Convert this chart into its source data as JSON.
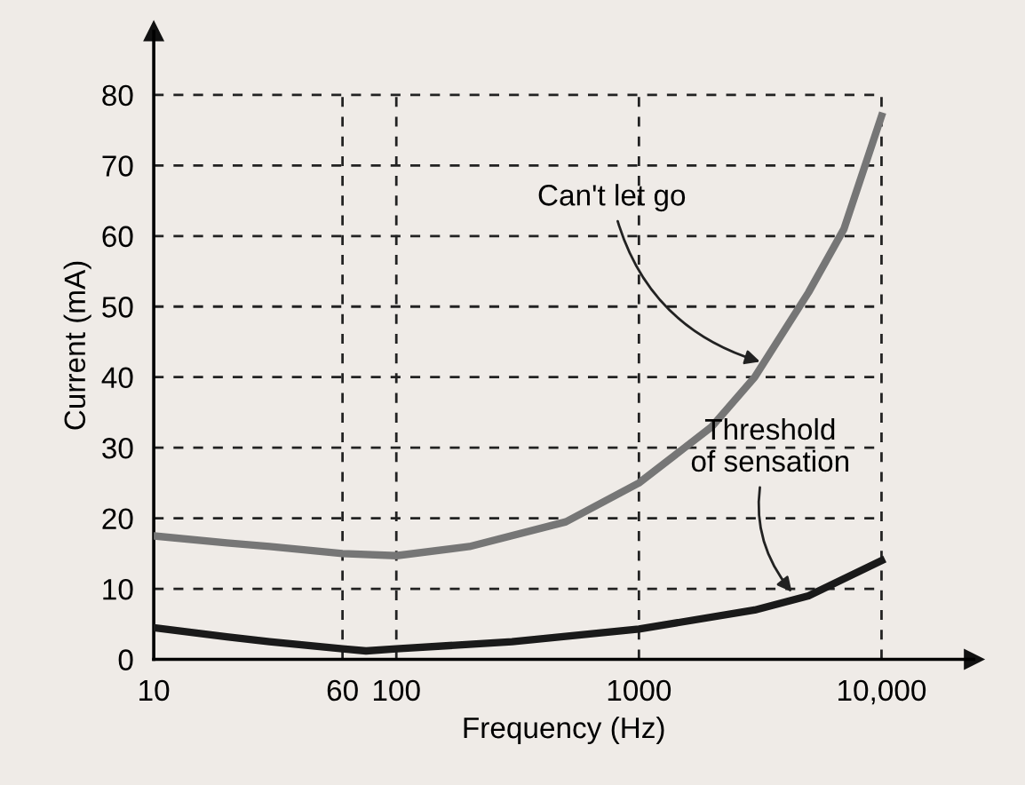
{
  "chart_data": {
    "type": "line",
    "xlabel": "Frequency (Hz)",
    "ylabel": "Current (mA)",
    "log": "x",
    "xlim": [
      10,
      24000
    ],
    "ylim": [
      0,
      89
    ],
    "xticks": [
      10,
      60,
      100,
      1000,
      {
        "value": 10000,
        "label": "10,000"
      }
    ],
    "yticks": [
      0,
      10,
      20,
      30,
      40,
      50,
      60,
      70,
      80
    ],
    "grid": true,
    "line_style": "solid",
    "series": [
      {
        "color": "#767676",
        "x": [
          10,
          20,
          30,
          60,
          100,
          200,
          500,
          1000,
          2000,
          3000,
          5000,
          7000,
          10000
        ],
        "values": [
          17.5,
          16.5,
          16,
          15,
          14.7,
          16,
          19.5,
          25,
          33,
          40,
          52,
          61,
          77
        ]
      },
      {
        "color": "#1a1a1a",
        "x": [
          10,
          20,
          30,
          60,
          75,
          100,
          300,
          1000,
          3000,
          5000,
          10000
        ],
        "values": [
          4.5,
          3.2,
          2.5,
          1.5,
          1.2,
          1.5,
          2.5,
          4.3,
          7,
          9,
          14
        ]
      }
    ],
    "annotations": [
      {
        "text": "Can't let go",
        "x": 3300,
        "y": 42
      },
      {
        "text": "Threshold\nof sensation",
        "x": 4400,
        "y": 9
      }
    ]
  }
}
